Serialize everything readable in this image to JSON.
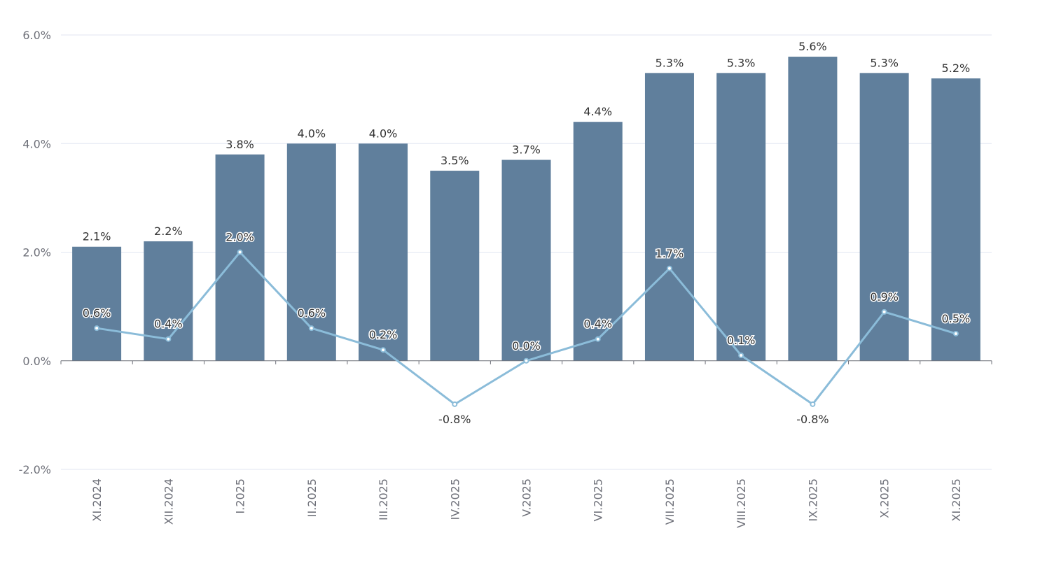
{
  "chart_data": {
    "type": "bar",
    "categories": [
      "XI.2024",
      "XII.2024",
      "I.2025",
      "II.2025",
      "III.2025",
      "IV.2025",
      "V.2025",
      "VI.2025",
      "VII.2025",
      "VIII.2025",
      "IX.2025",
      "X.2025",
      "XI.2025"
    ],
    "series": [
      {
        "name": "bar",
        "type": "bar",
        "color": "#607f9c",
        "values": [
          2.1,
          2.2,
          3.8,
          4.0,
          4.0,
          3.5,
          3.7,
          4.4,
          5.3,
          5.3,
          5.6,
          5.3,
          5.2
        ],
        "labels": [
          "2.1%",
          "2.2%",
          "3.8%",
          "4.0%",
          "4.0%",
          "3.5%",
          "3.7%",
          "4.4%",
          "5.3%",
          "5.3%",
          "5.6%",
          "5.3%",
          "5.2%"
        ]
      },
      {
        "name": "line",
        "type": "line",
        "color": "#8bbcd9",
        "values": [
          0.6,
          0.4,
          2.0,
          0.6,
          0.2,
          -0.8,
          0.0,
          0.4,
          1.7,
          0.1,
          -0.8,
          0.9,
          0.5
        ],
        "labels": [
          "0.6%",
          "0.4%",
          "2.0%",
          "0.6%",
          "0.2%",
          "-0.8%",
          "0.0%",
          "0.4%",
          "1.7%",
          "0.1%",
          "-0.8%",
          "0.9%",
          "0.5%"
        ]
      }
    ],
    "title": "",
    "xlabel": "",
    "ylabel": "",
    "ylim": [
      -2.0,
      6.0
    ],
    "yticks": [
      -2.0,
      0.0,
      2.0,
      4.0,
      6.0
    ],
    "ytick_labels": [
      "-2.0%",
      "0.0%",
      "2.0%",
      "4.0%",
      "6.0%"
    ],
    "grid": true,
    "legend": "none"
  }
}
